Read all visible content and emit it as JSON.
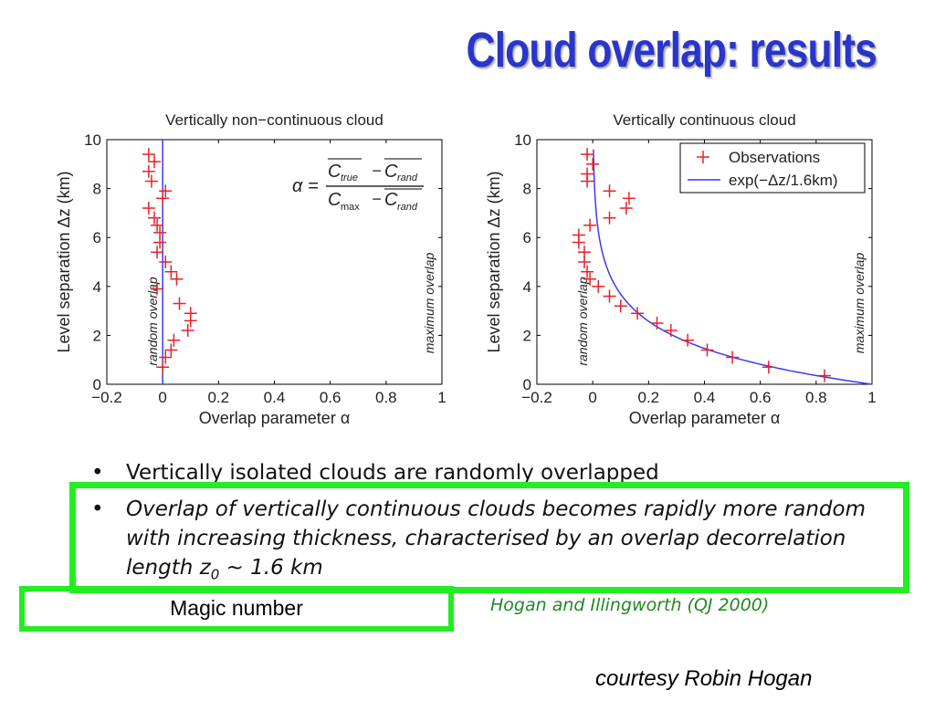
{
  "slide": {
    "title": "Cloud overlap: results",
    "bullets": [
      {
        "marker": "•",
        "text": "Vertically isolated clouds are randomly overlapped"
      },
      {
        "marker": "•",
        "text_main": "Overlap of vertically continuous clouds becomes rapidly more random with increasing thickness, characterised by an overlap decorrelation length z",
        "text_sub": "0",
        "text_tail": " ~ 1.6 km"
      }
    ],
    "magic_label": "Magic number",
    "citation": "Hogan and Illingworth (QJ 2000)",
    "credit": "courtesy Robin Hogan"
  },
  "chart_data": [
    {
      "type": "scatter",
      "title": "Vertically non−continuous cloud",
      "xlabel": "Overlap parameter α",
      "ylabel": "Level separation Δz (km)",
      "xlim": [
        -0.2,
        1
      ],
      "ylim": [
        0,
        10
      ],
      "xticks": [
        "−0.2",
        "0",
        "0.2",
        "0.4",
        "0.6",
        "0.8",
        "1"
      ],
      "yticks": [
        "0",
        "2",
        "4",
        "6",
        "8",
        "10"
      ],
      "annotations": [
        "random overlap",
        "maximum overlap"
      ],
      "formula": {
        "lhs": "α =",
        "num_a": "C",
        "num_a_sub": "true",
        "num_b": "C",
        "num_b_sub": "rand",
        "den_a": "C",
        "den_a_sub": "max",
        "den_b": "C",
        "den_b_sub": "rand",
        "minus": "−"
      },
      "reference_line_x": 0,
      "series": [
        {
          "marker": "+",
          "color": "#e8202a",
          "points": [
            [
              -0.05,
              9.4
            ],
            [
              -0.03,
              9.1
            ],
            [
              -0.05,
              8.7
            ],
            [
              -0.04,
              8.3
            ],
            [
              0.01,
              7.9
            ],
            [
              0.0,
              7.6
            ],
            [
              -0.05,
              7.2
            ],
            [
              -0.03,
              6.8
            ],
            [
              -0.02,
              6.5
            ],
            [
              -0.01,
              6.2
            ],
            [
              -0.01,
              5.8
            ],
            [
              -0.02,
              5.4
            ],
            [
              0.01,
              5.0
            ],
            [
              0.03,
              4.6
            ],
            [
              0.05,
              4.3
            ],
            [
              -0.02,
              3.9
            ],
            [
              0.06,
              3.3
            ],
            [
              0.1,
              2.9
            ],
            [
              0.1,
              2.6
            ],
            [
              0.09,
              2.2
            ],
            [
              0.04,
              1.8
            ],
            [
              0.03,
              1.4
            ],
            [
              0.01,
              1.1
            ],
            [
              0.0,
              0.7
            ]
          ]
        }
      ]
    },
    {
      "type": "scatter",
      "title": "Vertically continuous cloud",
      "xlabel": "Overlap parameter α",
      "ylabel": "Level separation Δz (km)",
      "xlim": [
        -0.2,
        1
      ],
      "ylim": [
        0,
        10
      ],
      "xticks": [
        "−0.2",
        "0",
        "0.2",
        "0.4",
        "0.6",
        "0.8",
        "1"
      ],
      "yticks": [
        "0",
        "2",
        "4",
        "6",
        "8",
        "10"
      ],
      "annotations": [
        "random overlap",
        "maximum overlap"
      ],
      "legend_position": "top-right",
      "series": [
        {
          "name": "Observations",
          "marker": "+",
          "color": "#e8202a",
          "points": [
            [
              -0.02,
              9.4
            ],
            [
              0.0,
              9.0
            ],
            [
              -0.02,
              8.6
            ],
            [
              -0.02,
              8.3
            ],
            [
              0.06,
              7.9
            ],
            [
              0.13,
              7.6
            ],
            [
              0.12,
              7.2
            ],
            [
              0.06,
              6.8
            ],
            [
              -0.01,
              6.5
            ],
            [
              -0.05,
              6.1
            ],
            [
              -0.05,
              5.8
            ],
            [
              -0.03,
              5.4
            ],
            [
              -0.03,
              5.0
            ],
            [
              -0.02,
              4.6
            ],
            [
              -0.01,
              4.3
            ],
            [
              0.02,
              4.0
            ],
            [
              0.06,
              3.6
            ],
            [
              0.1,
              3.2
            ],
            [
              0.16,
              2.9
            ],
            [
              0.23,
              2.5
            ],
            [
              0.28,
              2.2
            ],
            [
              0.34,
              1.8
            ],
            [
              0.41,
              1.4
            ],
            [
              0.5,
              1.1
            ],
            [
              0.63,
              0.7
            ],
            [
              0.83,
              0.35
            ]
          ]
        },
        {
          "name": "exp(−Δz/1.6km)",
          "line": true,
          "color": "#3a3af0",
          "decorrelation_km": 1.6
        }
      ]
    }
  ]
}
